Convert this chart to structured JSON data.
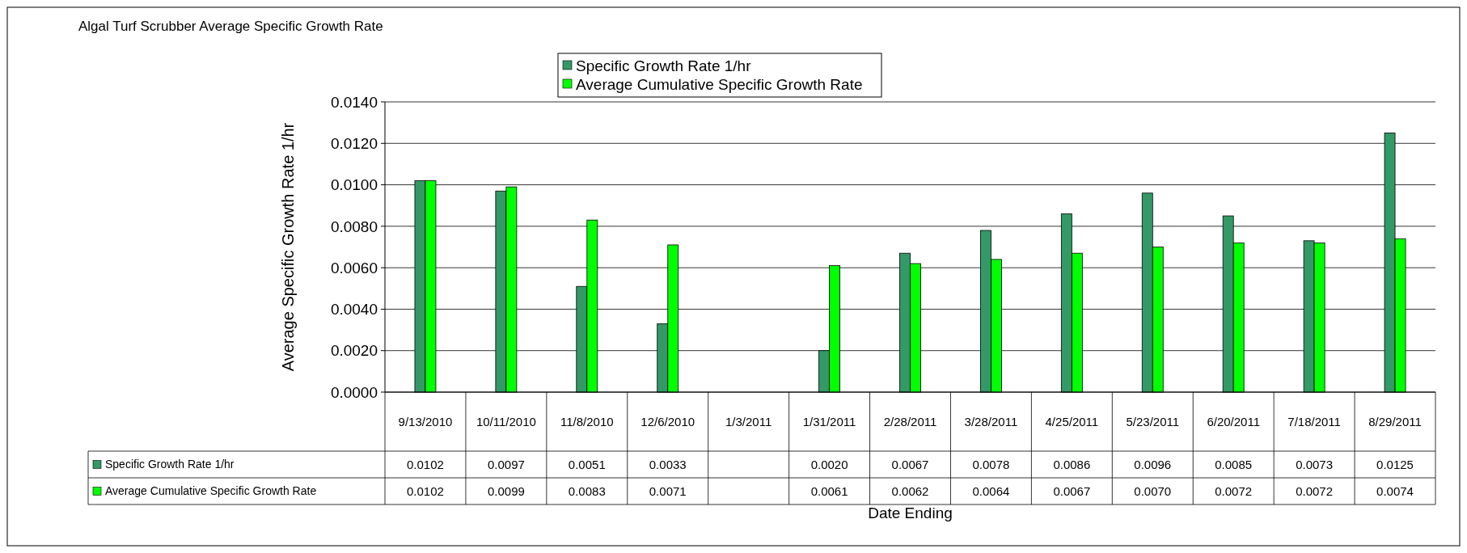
{
  "chart_data": {
    "type": "bar",
    "title": "Algal Turf Scrubber Average Specific Growth Rate",
    "xlabel": "Date Ending",
    "ylabel": "Average Specific Growth Rate 1/hr",
    "categories": [
      "9/13/2010",
      "10/11/2010",
      "11/8/2010",
      "12/6/2010",
      "1/3/2011",
      "1/31/2011",
      "2/28/2011",
      "3/28/2011",
      "4/25/2011",
      "5/23/2011",
      "6/20/2011",
      "7/18/2011",
      "8/29/2011"
    ],
    "series": [
      {
        "name": "Specific Growth Rate 1/hr",
        "color": "#339966",
        "values": [
          0.0102,
          0.0097,
          0.0051,
          0.0033,
          null,
          0.002,
          0.0067,
          0.0078,
          0.0086,
          0.0096,
          0.0085,
          0.0073,
          0.0125
        ],
        "value_labels": [
          "0.0102",
          "0.0097",
          "0.0051",
          "0.0033",
          null,
          "0.0020",
          "0.0067",
          "0.0078",
          "0.0086",
          "0.0096",
          "0.0085",
          "0.0073",
          "0.0125"
        ]
      },
      {
        "name": "Average Cumulative Specific Growth Rate",
        "color": "#00ff00",
        "values": [
          0.0102,
          0.0099,
          0.0083,
          0.0071,
          null,
          0.0061,
          0.0062,
          0.0064,
          0.0067,
          0.007,
          0.0072,
          0.0072,
          0.0074
        ],
        "value_labels": [
          "0.0102",
          "0.0099",
          "0.0083",
          "0.0071",
          null,
          "0.0061",
          "0.0062",
          "0.0064",
          "0.0067",
          "0.0070",
          "0.0072",
          "0.0072",
          "0.0074"
        ]
      }
    ],
    "ylim": [
      0,
      0.014
    ],
    "yticks": [
      {
        "value": 0,
        "label": "0.0000"
      },
      {
        "value": 0.002,
        "label": "0.0020"
      },
      {
        "value": 0.004,
        "label": "0.0040"
      },
      {
        "value": 0.006,
        "label": "0.0060"
      },
      {
        "value": 0.008,
        "label": "0.0080"
      },
      {
        "value": 0.01,
        "label": "0.0100"
      },
      {
        "value": 0.012,
        "label": "0.0120"
      },
      {
        "value": 0.014,
        "label": "0.0140"
      }
    ],
    "grid": "y",
    "legend": "top"
  }
}
